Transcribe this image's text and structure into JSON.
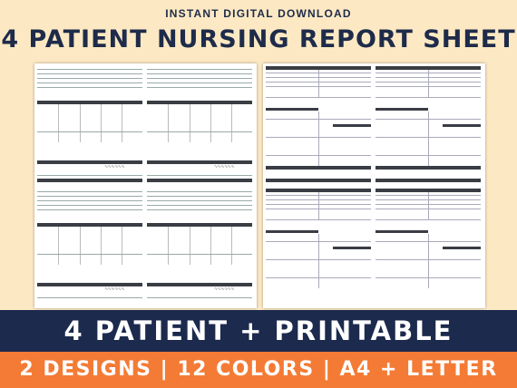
{
  "header": {
    "kicker": "INSTANT DIGITAL DOWNLOAD",
    "title": "4 PATIENT NURSING REPORT SHEET"
  },
  "banner": {
    "primary": "4 PATIENT + PRINTABLE",
    "secondary": "2 DESIGNS | 12 COLORS | A4 + LETTER"
  },
  "colors": {
    "background": "#fce9c3",
    "navy": "#1c2a4d",
    "orange": "#f47b35",
    "sheet_header": "#3a3d44"
  }
}
